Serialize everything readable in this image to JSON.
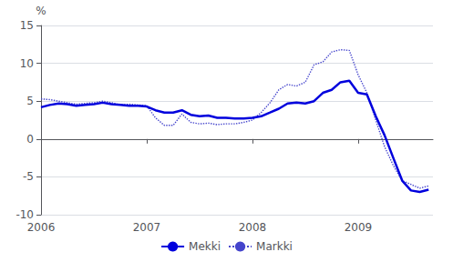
{
  "chart_data": {
    "type": "line",
    "ylabel": "%",
    "x": [
      2006.0,
      2006.083,
      2006.167,
      2006.25,
      2006.333,
      2006.417,
      2006.5,
      2006.583,
      2006.667,
      2006.75,
      2006.833,
      2006.917,
      2007.0,
      2007.083,
      2007.167,
      2007.25,
      2007.333,
      2007.417,
      2007.5,
      2007.583,
      2007.667,
      2007.75,
      2007.833,
      2007.917,
      2008.0,
      2008.083,
      2008.167,
      2008.25,
      2008.333,
      2008.417,
      2008.5,
      2008.583,
      2008.667,
      2008.75,
      2008.833,
      2008.917,
      2009.0,
      2009.083,
      2009.167,
      2009.25,
      2009.333,
      2009.417,
      2009.5,
      2009.583,
      2009.667
    ],
    "series": [
      {
        "name": "Markki",
        "color": "#4444cc",
        "line_style": "dotted",
        "values": [
          5.3,
          5.2,
          5.0,
          4.8,
          4.6,
          4.7,
          4.8,
          5.0,
          4.8,
          4.5,
          4.6,
          4.5,
          4.4,
          2.8,
          1.8,
          1.8,
          3.3,
          2.2,
          2.0,
          2.1,
          1.9,
          2.0,
          2.0,
          2.2,
          2.5,
          3.5,
          4.8,
          6.5,
          7.2,
          7.0,
          7.5,
          9.8,
          10.2,
          11.5,
          11.8,
          11.7,
          8.5,
          6.1,
          2.5,
          -1.0,
          -3.5,
          -5.5,
          -6.0,
          -6.5,
          -6.2
        ]
      },
      {
        "name": "Mekki",
        "color": "#0000dd",
        "line_style": "solid",
        "values": [
          4.2,
          4.5,
          4.7,
          4.6,
          4.4,
          4.5,
          4.6,
          4.8,
          4.6,
          4.5,
          4.4,
          4.4,
          4.3,
          3.8,
          3.5,
          3.5,
          3.8,
          3.2,
          3.0,
          3.1,
          2.8,
          2.8,
          2.7,
          2.7,
          2.8,
          3.0,
          3.5,
          4.0,
          4.7,
          4.8,
          4.7,
          5.0,
          6.1,
          6.5,
          7.5,
          7.7,
          6.1,
          5.9,
          3.0,
          0.5,
          -2.5,
          -5.5,
          -6.8,
          -7.0,
          -6.7
        ]
      }
    ],
    "xlim": [
      2006.0,
      2009.708
    ],
    "xticks": [
      2006,
      2007,
      2008,
      2009
    ],
    "ylim": [
      -10,
      15
    ],
    "yticks": [
      -10,
      -5,
      0,
      5,
      10,
      15
    ],
    "grid": "y",
    "legend": "bottom"
  }
}
